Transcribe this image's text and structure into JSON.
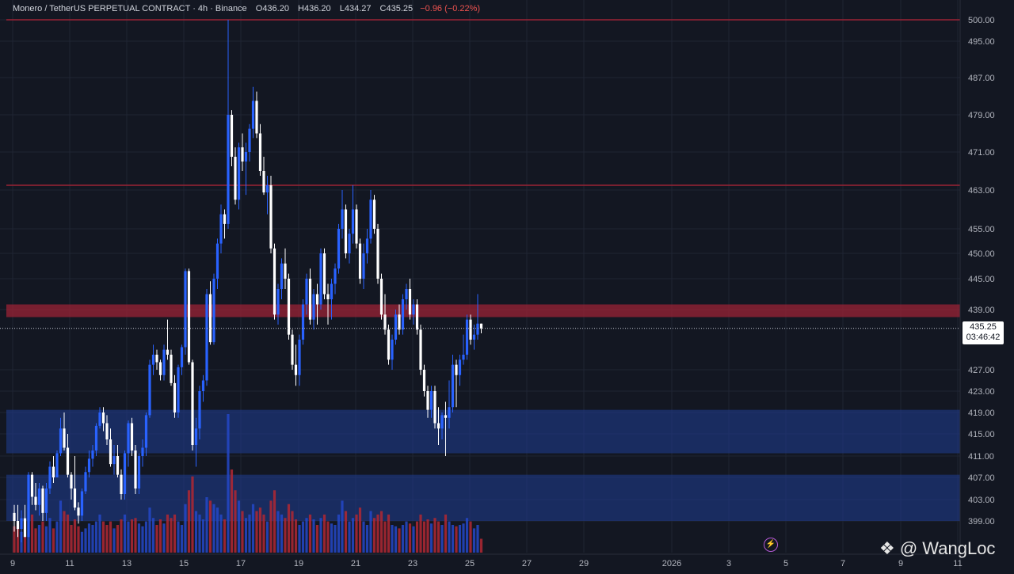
{
  "header": {
    "symbol": "Monero / TetherUS PERPETUAL CONTRACT · 4h · Binance",
    "o_label": "O",
    "o_value": "436.20",
    "h_label": "H",
    "h_value": "436.20",
    "l_label": "L",
    "l_value": "434.27",
    "c_label": "C",
    "c_value": "435.25",
    "change": "−0.96 (−0.22%)"
  },
  "last_price": {
    "price": "435.25",
    "countdown": "03:46:42"
  },
  "watermark": {
    "icon": "binance-diamond-icon",
    "text": "@ WangLoc"
  },
  "colors": {
    "background": "#131722",
    "up": "#2962ff",
    "down": "#ffffff",
    "vol_up": "#2448c8",
    "vol_down": "#b22833",
    "zone_blue": "#1e3a8a",
    "zone_red": "#9b2335",
    "resistance_line": "#9b2335"
  },
  "chart_data": {
    "type": "candlestick",
    "timeframe": "4h",
    "y_axis_ticks": [
      "399.00",
      "403.00",
      "407.00",
      "411.00",
      "415.00",
      "419.00",
      "423.00",
      "427.00",
      "439.00",
      "445.00",
      "450.00",
      "455.00",
      "463.00",
      "471.00",
      "479.00",
      "487.00",
      "495.00",
      "500.00"
    ],
    "x_axis_ticks": [
      "9",
      "11",
      "13",
      "15",
      "17",
      "19",
      "21",
      "23",
      "25",
      "27",
      "29",
      "2026",
      "3",
      "5",
      "7",
      "9",
      "11"
    ],
    "horizontal_lines": [
      500,
      464
    ],
    "zones": [
      {
        "name": "resistance",
        "low": 437.5,
        "high": 440,
        "color": "red"
      },
      {
        "name": "support-upper",
        "low": 411.5,
        "high": 419.5,
        "color": "blue"
      },
      {
        "name": "support-lower",
        "low": 399,
        "high": 407.5,
        "color": "blue"
      }
    ],
    "candles": [
      {
        "o": 400.5,
        "h": 402.0,
        "l": 397.0,
        "c": 399.0,
        "v": 38
      },
      {
        "o": 399.0,
        "h": 402.0,
        "l": 396.0,
        "c": 397.5,
        "v": 42
      },
      {
        "o": 397.5,
        "h": 401.0,
        "l": 395.0,
        "c": 399.5,
        "v": 30
      },
      {
        "o": 399.5,
        "h": 402.0,
        "l": 396.0,
        "c": 396.0,
        "v": 25
      },
      {
        "o": 396.0,
        "h": 408.0,
        "l": 396.0,
        "c": 407.5,
        "v": 70
      },
      {
        "o": 407.5,
        "h": 408.0,
        "l": 402.0,
        "c": 403.5,
        "v": 55
      },
      {
        "o": 403.5,
        "h": 406.0,
        "l": 401.0,
        "c": 402.0,
        "v": 35
      },
      {
        "o": 402.0,
        "h": 406.0,
        "l": 400.0,
        "c": 405.0,
        "v": 40
      },
      {
        "o": 405.0,
        "h": 405.5,
        "l": 399.0,
        "c": 400.5,
        "v": 45
      },
      {
        "o": 400.5,
        "h": 406.0,
        "l": 399.0,
        "c": 405.0,
        "v": 38
      },
      {
        "o": 405.0,
        "h": 410.0,
        "l": 404.0,
        "c": 409.0,
        "v": 50
      },
      {
        "o": 409.0,
        "h": 411.0,
        "l": 406.0,
        "c": 407.0,
        "v": 35
      },
      {
        "o": 407.0,
        "h": 412.0,
        "l": 407.0,
        "c": 411.5,
        "v": 45
      },
      {
        "o": 411.5,
        "h": 418.0,
        "l": 411.0,
        "c": 416.0,
        "v": 75
      },
      {
        "o": 416.0,
        "h": 419.0,
        "l": 412.0,
        "c": 412.5,
        "v": 60
      },
      {
        "o": 412.5,
        "h": 415.0,
        "l": 407.0,
        "c": 407.5,
        "v": 55
      },
      {
        "o": 407.5,
        "h": 408.0,
        "l": 403.0,
        "c": 405.0,
        "v": 40
      },
      {
        "o": 405.0,
        "h": 411.0,
        "l": 401.0,
        "c": 401.5,
        "v": 48
      },
      {
        "o": 401.5,
        "h": 402.5,
        "l": 398.5,
        "c": 400.0,
        "v": 38
      },
      {
        "o": 400.0,
        "h": 405.0,
        "l": 399.0,
        "c": 404.5,
        "v": 30
      },
      {
        "o": 404.5,
        "h": 409.0,
        "l": 404.0,
        "c": 408.0,
        "v": 35
      },
      {
        "o": 408.0,
        "h": 412.0,
        "l": 407.0,
        "c": 410.5,
        "v": 42
      },
      {
        "o": 410.5,
        "h": 413.0,
        "l": 409.0,
        "c": 412.0,
        "v": 40
      },
      {
        "o": 412.0,
        "h": 417.0,
        "l": 411.0,
        "c": 416.5,
        "v": 45
      },
      {
        "o": 416.5,
        "h": 420.0,
        "l": 416.0,
        "c": 419.0,
        "v": 55
      },
      {
        "o": 419.0,
        "h": 420.0,
        "l": 415.5,
        "c": 417.0,
        "v": 45
      },
      {
        "o": 417.0,
        "h": 418.5,
        "l": 413.0,
        "c": 414.0,
        "v": 40
      },
      {
        "o": 414.0,
        "h": 416.0,
        "l": 409.0,
        "c": 409.5,
        "v": 45
      },
      {
        "o": 409.5,
        "h": 413.0,
        "l": 407.5,
        "c": 411.0,
        "v": 35
      },
      {
        "o": 411.0,
        "h": 413.0,
        "l": 407.0,
        "c": 407.5,
        "v": 40
      },
      {
        "o": 407.5,
        "h": 408.5,
        "l": 403.0,
        "c": 404.0,
        "v": 48
      },
      {
        "o": 404.0,
        "h": 412.0,
        "l": 403.0,
        "c": 411.5,
        "v": 55
      },
      {
        "o": 411.5,
        "h": 417.5,
        "l": 409.0,
        "c": 417.0,
        "v": 45
      },
      {
        "o": 417.0,
        "h": 418.0,
        "l": 411.0,
        "c": 412.0,
        "v": 48
      },
      {
        "o": 412.0,
        "h": 413.0,
        "l": 404.0,
        "c": 405.0,
        "v": 50
      },
      {
        "o": 405.0,
        "h": 411.5,
        "l": 404.0,
        "c": 411.0,
        "v": 42
      },
      {
        "o": 411.0,
        "h": 414.0,
        "l": 409.0,
        "c": 412.5,
        "v": 38
      },
      {
        "o": 412.5,
        "h": 419.0,
        "l": 411.0,
        "c": 418.5,
        "v": 45
      },
      {
        "o": 418.5,
        "h": 429.0,
        "l": 418.0,
        "c": 428.0,
        "v": 65
      },
      {
        "o": 428.0,
        "h": 432.0,
        "l": 426.0,
        "c": 430.0,
        "v": 50
      },
      {
        "o": 430.0,
        "h": 431.0,
        "l": 427.0,
        "c": 428.5,
        "v": 40
      },
      {
        "o": 428.5,
        "h": 429.0,
        "l": 425.0,
        "c": 426.0,
        "v": 48
      },
      {
        "o": 426.0,
        "h": 432.0,
        "l": 425.0,
        "c": 431.0,
        "v": 42
      },
      {
        "o": 431.0,
        "h": 437.0,
        "l": 429.0,
        "c": 430.0,
        "v": 55
      },
      {
        "o": 430.0,
        "h": 431.0,
        "l": 424.0,
        "c": 424.5,
        "v": 50
      },
      {
        "o": 424.5,
        "h": 426.0,
        "l": 418.0,
        "c": 419.0,
        "v": 55
      },
      {
        "o": 419.0,
        "h": 428.0,
        "l": 418.0,
        "c": 427.5,
        "v": 45
      },
      {
        "o": 427.5,
        "h": 432.0,
        "l": 426.0,
        "c": 431.5,
        "v": 40
      },
      {
        "o": 431.5,
        "h": 447.0,
        "l": 430.0,
        "c": 446.5,
        "v": 70
      },
      {
        "o": 446.5,
        "h": 447.0,
        "l": 428.0,
        "c": 428.5,
        "v": 90
      },
      {
        "o": 428.5,
        "h": 429.0,
        "l": 412.0,
        "c": 413.0,
        "v": 110
      },
      {
        "o": 413.0,
        "h": 418.0,
        "l": 409.0,
        "c": 416.0,
        "v": 60
      },
      {
        "o": 416.0,
        "h": 424.0,
        "l": 414.0,
        "c": 423.0,
        "v": 55
      },
      {
        "o": 423.0,
        "h": 426.0,
        "l": 421.0,
        "c": 425.0,
        "v": 48
      },
      {
        "o": 425.0,
        "h": 443.0,
        "l": 424.0,
        "c": 442.0,
        "v": 80
      },
      {
        "o": 442.0,
        "h": 444.5,
        "l": 432.0,
        "c": 432.5,
        "v": 75
      },
      {
        "o": 432.5,
        "h": 446.0,
        "l": 432.0,
        "c": 445.0,
        "v": 70
      },
      {
        "o": 445.0,
        "h": 453.0,
        "l": 443.0,
        "c": 452.0,
        "v": 65
      },
      {
        "o": 452.0,
        "h": 460.0,
        "l": 450.0,
        "c": 458.0,
        "v": 55
      },
      {
        "o": 458.0,
        "h": 459.0,
        "l": 453.0,
        "c": 456.0,
        "v": 48
      },
      {
        "o": 456.0,
        "h": 500.0,
        "l": 455.0,
        "c": 479.0,
        "v": 200
      },
      {
        "o": 479.0,
        "h": 480.0,
        "l": 468.0,
        "c": 470.0,
        "v": 120
      },
      {
        "o": 470.0,
        "h": 472.0,
        "l": 460.0,
        "c": 461.0,
        "v": 90
      },
      {
        "o": 461.0,
        "h": 473.0,
        "l": 459.0,
        "c": 472.0,
        "v": 75
      },
      {
        "o": 472.0,
        "h": 475.0,
        "l": 467.0,
        "c": 469.0,
        "v": 60
      },
      {
        "o": 469.0,
        "h": 473.0,
        "l": 462.0,
        "c": 471.0,
        "v": 50
      },
      {
        "o": 471.0,
        "h": 477.0,
        "l": 469.0,
        "c": 476.0,
        "v": 55
      },
      {
        "o": 476.0,
        "h": 485.0,
        "l": 474.0,
        "c": 482.0,
        "v": 70
      },
      {
        "o": 482.0,
        "h": 484.0,
        "l": 474.0,
        "c": 475.0,
        "v": 60
      },
      {
        "o": 475.0,
        "h": 477.0,
        "l": 466.0,
        "c": 467.0,
        "v": 65
      },
      {
        "o": 467.0,
        "h": 470.0,
        "l": 462.0,
        "c": 462.5,
        "v": 55
      },
      {
        "o": 462.5,
        "h": 466.0,
        "l": 458.0,
        "c": 464.0,
        "v": 45
      },
      {
        "o": 464.0,
        "h": 466.0,
        "l": 450.0,
        "c": 451.0,
        "v": 75
      },
      {
        "o": 451.0,
        "h": 452.0,
        "l": 437.0,
        "c": 438.0,
        "v": 90
      },
      {
        "o": 438.0,
        "h": 444.0,
        "l": 436.0,
        "c": 443.0,
        "v": 60
      },
      {
        "o": 443.0,
        "h": 449.0,
        "l": 441.0,
        "c": 448.0,
        "v": 55
      },
      {
        "o": 448.0,
        "h": 451.0,
        "l": 443.0,
        "c": 445.0,
        "v": 50
      },
      {
        "o": 445.0,
        "h": 446.0,
        "l": 433.0,
        "c": 434.0,
        "v": 70
      },
      {
        "o": 434.0,
        "h": 435.0,
        "l": 427.0,
        "c": 428.0,
        "v": 60
      },
      {
        "o": 428.0,
        "h": 432.0,
        "l": 424.0,
        "c": 426.0,
        "v": 48
      },
      {
        "o": 426.0,
        "h": 434.0,
        "l": 424.0,
        "c": 433.0,
        "v": 40
      },
      {
        "o": 433.0,
        "h": 441.0,
        "l": 432.0,
        "c": 440.0,
        "v": 45
      },
      {
        "o": 440.0,
        "h": 446.0,
        "l": 438.0,
        "c": 445.0,
        "v": 50
      },
      {
        "o": 445.0,
        "h": 447.0,
        "l": 436.0,
        "c": 437.0,
        "v": 55
      },
      {
        "o": 437.0,
        "h": 443.0,
        "l": 435.0,
        "c": 442.0,
        "v": 48
      },
      {
        "o": 442.0,
        "h": 444.0,
        "l": 436.0,
        "c": 440.0,
        "v": 40
      },
      {
        "o": 440.0,
        "h": 451.0,
        "l": 439.0,
        "c": 450.0,
        "v": 50
      },
      {
        "o": 450.0,
        "h": 451.0,
        "l": 441.0,
        "c": 442.0,
        "v": 55
      },
      {
        "o": 442.0,
        "h": 444.0,
        "l": 436.0,
        "c": 441.0,
        "v": 45
      },
      {
        "o": 441.0,
        "h": 445.0,
        "l": 437.0,
        "c": 444.0,
        "v": 42
      },
      {
        "o": 444.0,
        "h": 448.0,
        "l": 442.0,
        "c": 447.0,
        "v": 40
      },
      {
        "o": 447.0,
        "h": 456.0,
        "l": 446.0,
        "c": 455.0,
        "v": 55
      },
      {
        "o": 455.0,
        "h": 463.0,
        "l": 453.0,
        "c": 459.0,
        "v": 75
      },
      {
        "o": 459.0,
        "h": 460.0,
        "l": 449.0,
        "c": 450.0,
        "v": 60
      },
      {
        "o": 450.0,
        "h": 455.0,
        "l": 448.0,
        "c": 454.0,
        "v": 45
      },
      {
        "o": 454.0,
        "h": 464.0,
        "l": 452.0,
        "c": 459.0,
        "v": 50
      },
      {
        "o": 459.0,
        "h": 460.0,
        "l": 451.0,
        "c": 452.0,
        "v": 55
      },
      {
        "o": 452.0,
        "h": 453.0,
        "l": 444.0,
        "c": 445.0,
        "v": 65
      },
      {
        "o": 445.0,
        "h": 452.0,
        "l": 443.0,
        "c": 450.0,
        "v": 45
      },
      {
        "o": 450.0,
        "h": 455.0,
        "l": 448.0,
        "c": 453.0,
        "v": 40
      },
      {
        "o": 453.0,
        "h": 463.0,
        "l": 452.0,
        "c": 461.0,
        "v": 60
      },
      {
        "o": 461.0,
        "h": 462.0,
        "l": 454.0,
        "c": 455.0,
        "v": 50
      },
      {
        "o": 455.0,
        "h": 456.0,
        "l": 444.0,
        "c": 445.0,
        "v": 55
      },
      {
        "o": 445.0,
        "h": 446.0,
        "l": 437.0,
        "c": 438.0,
        "v": 60
      },
      {
        "o": 438.0,
        "h": 442.0,
        "l": 434.0,
        "c": 435.0,
        "v": 45
      },
      {
        "o": 435.0,
        "h": 436.0,
        "l": 428.0,
        "c": 429.0,
        "v": 55
      },
      {
        "o": 429.0,
        "h": 434.0,
        "l": 427.0,
        "c": 433.0,
        "v": 40
      },
      {
        "o": 433.0,
        "h": 439.0,
        "l": 432.0,
        "c": 438.0,
        "v": 38
      },
      {
        "o": 438.0,
        "h": 440.0,
        "l": 434.0,
        "c": 435.0,
        "v": 35
      },
      {
        "o": 435.0,
        "h": 442.0,
        "l": 434.0,
        "c": 441.0,
        "v": 40
      },
      {
        "o": 441.0,
        "h": 444.0,
        "l": 439.0,
        "c": 443.0,
        "v": 45
      },
      {
        "o": 443.0,
        "h": 445.0,
        "l": 437.0,
        "c": 438.0,
        "v": 42
      },
      {
        "o": 438.0,
        "h": 441.0,
        "l": 436.0,
        "c": 440.0,
        "v": 38
      },
      {
        "o": 440.0,
        "h": 441.0,
        "l": 434.0,
        "c": 435.0,
        "v": 45
      },
      {
        "o": 435.0,
        "h": 436.0,
        "l": 426.0,
        "c": 427.0,
        "v": 55
      },
      {
        "o": 427.0,
        "h": 428.0,
        "l": 422.0,
        "c": 423.0,
        "v": 45
      },
      {
        "o": 423.0,
        "h": 424.0,
        "l": 418.0,
        "c": 419.5,
        "v": 48
      },
      {
        "o": 419.5,
        "h": 424.0,
        "l": 418.0,
        "c": 423.0,
        "v": 42
      },
      {
        "o": 423.0,
        "h": 424.0,
        "l": 416.0,
        "c": 417.0,
        "v": 50
      },
      {
        "o": 417.0,
        "h": 420.0,
        "l": 413.0,
        "c": 416.0,
        "v": 45
      },
      {
        "o": 416.0,
        "h": 419.0,
        "l": 414.0,
        "c": 418.5,
        "v": 40
      },
      {
        "o": 418.5,
        "h": 421.0,
        "l": 411.0,
        "c": 418.0,
        "v": 55
      },
      {
        "o": 418.0,
        "h": 425.0,
        "l": 416.0,
        "c": 420.0,
        "v": 45
      },
      {
        "o": 420.0,
        "h": 430.0,
        "l": 419.0,
        "c": 428.0,
        "v": 40
      },
      {
        "o": 428.0,
        "h": 429.0,
        "l": 420.0,
        "c": 426.0,
        "v": 38
      },
      {
        "o": 426.0,
        "h": 430.0,
        "l": 424.0,
        "c": 429.0,
        "v": 40
      },
      {
        "o": 429.0,
        "h": 434.0,
        "l": 428.0,
        "c": 430.0,
        "v": 42
      },
      {
        "o": 430.0,
        "h": 438.0,
        "l": 429.0,
        "c": 437.0,
        "v": 50
      },
      {
        "o": 437.0,
        "h": 438.0,
        "l": 432.0,
        "c": 433.0,
        "v": 45
      },
      {
        "o": 433.0,
        "h": 436.0,
        "l": 431.0,
        "c": 434.0,
        "v": 35
      },
      {
        "o": 434.0,
        "h": 442.0,
        "l": 433.0,
        "c": 436.2,
        "v": 40
      },
      {
        "o": 436.2,
        "h": 436.2,
        "l": 434.27,
        "c": 435.25,
        "v": 20
      }
    ]
  }
}
